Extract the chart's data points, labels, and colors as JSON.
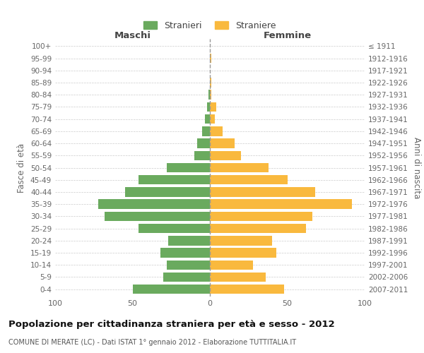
{
  "age_groups": [
    "0-4",
    "5-9",
    "10-14",
    "15-19",
    "20-24",
    "25-29",
    "30-34",
    "35-39",
    "40-44",
    "45-49",
    "50-54",
    "55-59",
    "60-64",
    "65-69",
    "70-74",
    "75-79",
    "80-84",
    "85-89",
    "90-94",
    "95-99",
    "100+"
  ],
  "birth_years": [
    "2007-2011",
    "2002-2006",
    "1997-2001",
    "1992-1996",
    "1987-1991",
    "1982-1986",
    "1977-1981",
    "1972-1976",
    "1967-1971",
    "1962-1966",
    "1957-1961",
    "1952-1956",
    "1947-1951",
    "1942-1946",
    "1937-1941",
    "1932-1936",
    "1927-1931",
    "1922-1926",
    "1917-1921",
    "1912-1916",
    "≤ 1911"
  ],
  "males": [
    50,
    30,
    28,
    32,
    27,
    46,
    68,
    72,
    55,
    46,
    28,
    10,
    8,
    5,
    3,
    2,
    1,
    0,
    0,
    0,
    0
  ],
  "females": [
    48,
    36,
    28,
    43,
    40,
    62,
    66,
    92,
    68,
    50,
    38,
    20,
    16,
    8,
    3,
    4,
    1,
    1,
    0,
    1,
    0
  ],
  "male_color": "#6aaa5e",
  "female_color": "#f9b93e",
  "xlabel_left": "Maschi",
  "xlabel_right": "Femmine",
  "ylabel_left": "Fasce di età",
  "ylabel_right": "Anni di nascita",
  "legend_male": "Stranieri",
  "legend_female": "Straniere",
  "title": "Popolazione per cittadinanza straniera per età e sesso - 2012",
  "subtitle": "COMUNE DI MERATE (LC) - Dati ISTAT 1° gennaio 2012 - Elaborazione TUTTITALIA.IT",
  "xlim": 100,
  "grid_color": "#cccccc",
  "background_color": "#ffffff",
  "center_line_color": "#999999"
}
